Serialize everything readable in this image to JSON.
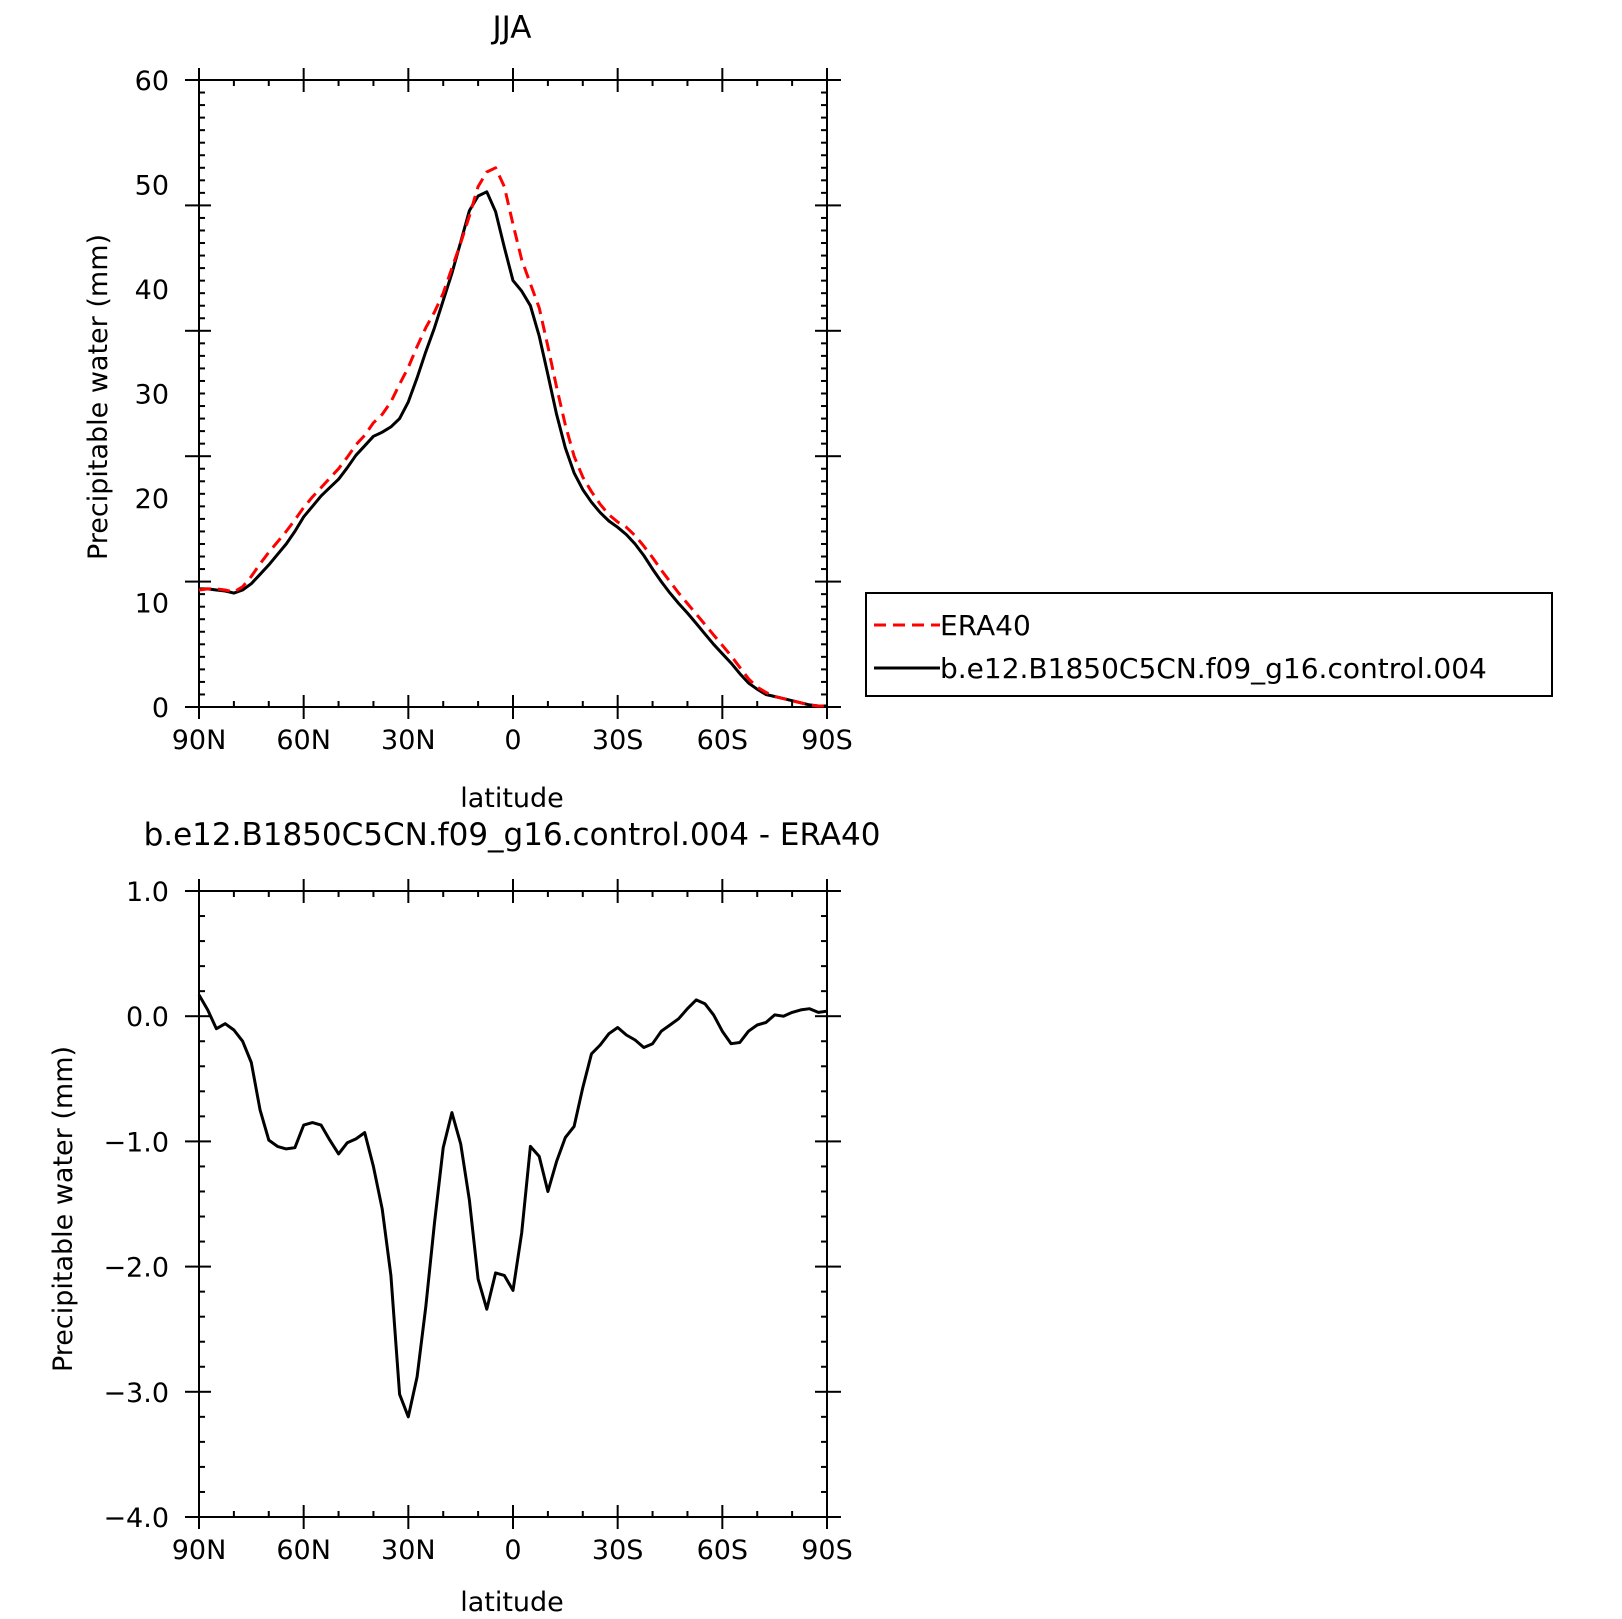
{
  "chart_data": [
    {
      "type": "line",
      "title": "JJA",
      "xlabel": "latitude",
      "ylabel": "Precipitable water (mm)",
      "xlim": [
        90,
        -90
      ],
      "ylim": [
        0,
        60
      ],
      "x_ticks": [
        90,
        60,
        30,
        0,
        -30,
        -60,
        -90
      ],
      "x_tick_labels": [
        "90N",
        "60N",
        "30N",
        "0",
        "30S",
        "60S",
        "90S"
      ],
      "y_ticks": [
        0,
        10,
        20,
        30,
        40,
        50,
        60
      ],
      "y_tick_labels": [
        "0",
        "10",
        "20",
        "30",
        "40",
        "50",
        "60"
      ],
      "legend": "right",
      "series": [
        {
          "name": "ERA40",
          "color": "#ff0000",
          "dash": true,
          "x": [
            90,
            87.5,
            85,
            82.5,
            80,
            77.5,
            75,
            72.5,
            70,
            67.5,
            65,
            62.5,
            60,
            57.5,
            55,
            52.5,
            50,
            47.5,
            45,
            42.5,
            40,
            37.5,
            35,
            32.5,
            30,
            27.5,
            25,
            22.5,
            20,
            17.5,
            15,
            12.5,
            10,
            7.5,
            5,
            2.5,
            0,
            -2.5,
            -5,
            -7.5,
            -10,
            -12.5,
            -15,
            -17.5,
            -20,
            -22.5,
            -25,
            -27.5,
            -30,
            -32.5,
            -35,
            -37.5,
            -40,
            -42.5,
            -45,
            -47.5,
            -50,
            -52.5,
            -55,
            -57.5,
            -60,
            -62.5,
            -65,
            -67.5,
            -70,
            -72.5,
            -75,
            -77.5,
            -80,
            -82.5,
            -85,
            -87.5,
            -90
          ],
          "values": [
            11.2,
            11.3,
            11.3,
            11.2,
            11.0,
            11.5,
            12.5,
            13.7,
            14.8,
            15.8,
            16.8,
            17.9,
            19.1,
            20.1,
            21.0,
            21.9,
            22.8,
            23.9,
            25.1,
            26.0,
            27.2,
            28.0,
            29.2,
            30.9,
            32.5,
            34.5,
            36.3,
            37.8,
            39.6,
            42.0,
            44.4,
            47.0,
            49.8,
            51.2,
            51.6,
            49.8,
            46.2,
            42.8,
            40.5,
            38.2,
            34.5,
            30.6,
            27.0,
            24.0,
            22.0,
            20.6,
            19.4,
            18.4,
            17.7,
            17.2,
            16.4,
            15.4,
            14.3,
            13.1,
            12.0,
            10.9,
            9.9,
            8.9,
            7.9,
            6.9,
            5.9,
            4.9,
            3.8,
            2.7,
            1.9,
            1.4,
            1.0,
            0.8,
            0.6,
            0.4,
            0.2,
            0.1,
            0.1
          ]
        },
        {
          "name": "b.e12.B1850C5CN.f09_g16.control.004",
          "color": "#000000",
          "dash": false,
          "x": [
            90,
            87.5,
            85,
            82.5,
            80,
            77.5,
            75,
            72.5,
            70,
            67.5,
            65,
            62.5,
            60,
            57.5,
            55,
            52.5,
            50,
            47.5,
            45,
            42.5,
            40,
            37.5,
            35,
            32.5,
            30,
            27.5,
            25,
            22.5,
            20,
            17.5,
            15,
            12.5,
            10,
            7.5,
            5,
            2.5,
            0,
            -2.5,
            -5,
            -7.5,
            -10,
            -12.5,
            -15,
            -17.5,
            -20,
            -22.5,
            -25,
            -27.5,
            -30,
            -32.5,
            -35,
            -37.5,
            -40,
            -42.5,
            -45,
            -47.5,
            -50,
            -52.5,
            -55,
            -57.5,
            -60,
            -62.5,
            -65,
            -67.5,
            -70,
            -72.5,
            -75,
            -77.5,
            -80,
            -82.5,
            -85,
            -87.5,
            -90
          ],
          "values": [
            11.3,
            11.3,
            11.2,
            11.1,
            10.9,
            11.2,
            11.8,
            12.7,
            13.6,
            14.6,
            15.6,
            16.8,
            18.2,
            19.2,
            20.2,
            21.0,
            21.8,
            22.9,
            24.1,
            25.0,
            25.9,
            26.3,
            26.8,
            27.6,
            29.2,
            31.5,
            34.0,
            36.3,
            38.9,
            41.5,
            44.5,
            47.5,
            48.9,
            49.3,
            47.4,
            44.0,
            40.8,
            39.8,
            38.4,
            35.5,
            31.8,
            28.0,
            24.8,
            22.4,
            20.8,
            19.6,
            18.6,
            17.8,
            17.2,
            16.5,
            15.6,
            14.5,
            13.2,
            12.0,
            10.9,
            9.9,
            9.0,
            8.0,
            7.0,
            6.0,
            5.1,
            4.2,
            3.2,
            2.3,
            1.7,
            1.2,
            1.0,
            0.8,
            0.6,
            0.4,
            0.2,
            0.1,
            0.1
          ]
        }
      ]
    },
    {
      "type": "line",
      "title": "b.e12.B1850C5CN.f09_g16.control.004 - ERA40",
      "xlabel": "latitude",
      "ylabel": "Precipitable water (mm)",
      "xlim": [
        90,
        -90
      ],
      "ylim": [
        -4,
        1
      ],
      "x_ticks": [
        90,
        60,
        30,
        0,
        -30,
        -60,
        -90
      ],
      "x_tick_labels": [
        "90N",
        "60N",
        "30N",
        "0",
        "30S",
        "60S",
        "90S"
      ],
      "y_ticks": [
        1,
        0,
        -1,
        -2,
        -3,
        -4
      ],
      "y_tick_labels": [
        "1.0",
        "0.0",
        "−1.0",
        "−2.0",
        "−3.0",
        "−4.0"
      ],
      "series": [
        {
          "color": "#000000",
          "dash": false,
          "x": [
            90,
            87.5,
            85,
            82.5,
            80,
            77.5,
            75,
            72.5,
            70,
            67.5,
            65,
            62.5,
            60,
            57.5,
            55,
            52.5,
            50,
            47.5,
            45,
            42.5,
            40,
            37.5,
            35,
            32.5,
            30,
            27.5,
            25,
            22.5,
            20,
            17.5,
            15,
            12.5,
            10,
            7.5,
            5,
            2.5,
            0,
            -2.5,
            -5,
            -7.5,
            -10,
            -12.5,
            -15,
            -17.5,
            -20,
            -22.5,
            -25,
            -27.5,
            -30,
            -32.5,
            -35,
            -37.5,
            -40,
            -42.5,
            -45,
            -47.5,
            -50,
            -52.5,
            -55,
            -57.5,
            -60,
            -62.5,
            -65,
            -67.5,
            -70,
            -72.5,
            -75,
            -77.5,
            -80,
            -82.5,
            -85,
            -87.5,
            -90
          ],
          "values": [
            0.17,
            0.05,
            -0.1,
            -0.06,
            -0.11,
            -0.2,
            -0.37,
            -0.75,
            -0.99,
            -1.04,
            -1.06,
            -1.05,
            -0.87,
            -0.85,
            -0.87,
            -0.99,
            -1.1,
            -1.01,
            -0.98,
            -0.93,
            -1.2,
            -1.54,
            -2.07,
            -3.02,
            -3.2,
            -2.88,
            -2.32,
            -1.65,
            -1.05,
            -0.77,
            -1.02,
            -1.47,
            -2.1,
            -2.34,
            -2.05,
            -2.07,
            -2.19,
            -1.73,
            -1.04,
            -1.12,
            -1.4,
            -1.16,
            -0.97,
            -0.88,
            -0.57,
            -0.3,
            -0.23,
            -0.14,
            -0.09,
            -0.15,
            -0.19,
            -0.25,
            -0.22,
            -0.12,
            -0.07,
            -0.02,
            0.06,
            0.13,
            0.1,
            0.01,
            -0.12,
            -0.22,
            -0.21,
            -0.12,
            -0.07,
            -0.05,
            0.01,
            0.0,
            0.03,
            0.05,
            0.06,
            0.03,
            0.04
          ]
        }
      ]
    }
  ]
}
